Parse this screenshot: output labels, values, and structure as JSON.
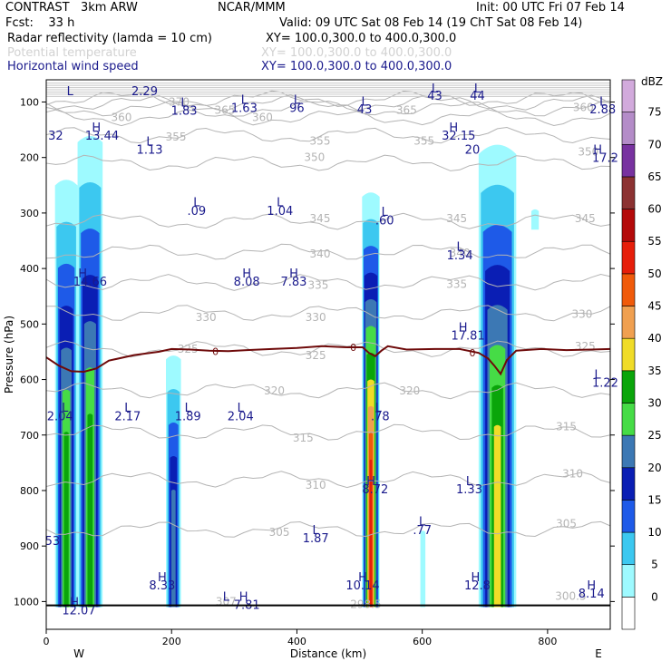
{
  "header": {
    "model": "CONTRAST   3km ARW",
    "org": "NCAR/MMM",
    "init": "Init: 00 UTC Fri 07 Feb 14",
    "fcst": "Fcst:    33 h",
    "valid": "Valid: 09 UTC Sat 08 Feb 14 (19 ChT Sat 08 Feb 14)",
    "field1": "Radar reflectivity (lamda = 10 cm)",
    "field1_xy": "XY= 100.0,300.0 to 400.0,300.0",
    "field2": "Potential temperature",
    "field2_xy": "XY= 100.0,300.0 to 400.0,300.0",
    "field3": "Horizontal wind speed",
    "field3_xy": "XY= 100.0,300.0 to 400.0,300.0"
  },
  "chart_data": {
    "type": "heatmap",
    "title": "Cross section: Radar reflectivity, Potential temperature, Horizontal wind speed",
    "xlabel": "Distance (km)",
    "ylabel": "Pressure (hPa)",
    "xlim": [
      0,
      900
    ],
    "ylim": [
      1050,
      60
    ],
    "x_ticks": [
      0,
      200,
      400,
      600,
      800
    ],
    "y_ticks": [
      100,
      200,
      300,
      400,
      500,
      600,
      700,
      800,
      900,
      1000
    ],
    "west_label": "W",
    "east_label": "E",
    "colorbar": {
      "unit": "dBZ",
      "levels": [
        0,
        5,
        10,
        15,
        20,
        25,
        30,
        35,
        40,
        45,
        50,
        55,
        60,
        65,
        70,
        75
      ],
      "colors": [
        "#ffffff",
        "#9efaff",
        "#3cc8f0",
        "#1e5ae8",
        "#0a1eb4",
        "#3c78b4",
        "#46dc46",
        "#0aa50a",
        "#f0dc28",
        "#f0a050",
        "#f05a0a",
        "#e61e0a",
        "#b40a0a",
        "#8c3232",
        "#7832a0",
        "#b48cc8",
        "#d2aadc"
      ]
    },
    "reflectivity_cells": [
      {
        "name": "cell-a",
        "x_center": 32,
        "x_half": 18,
        "top_hPa": 230,
        "bottom_hPa": 1010,
        "max_dBZ": 35
      },
      {
        "name": "cell-b",
        "x_center": 70,
        "x_half": 20,
        "top_hPa": 150,
        "bottom_hPa": 1010,
        "max_dBZ": 35
      },
      {
        "name": "cell-c",
        "x_center": 203,
        "x_half": 12,
        "top_hPa": 550,
        "bottom_hPa": 1010,
        "max_dBZ": 25
      },
      {
        "name": "cell-d",
        "x_center": 518,
        "x_half": 14,
        "top_hPa": 255,
        "bottom_hPa": 1010,
        "max_dBZ": 55
      },
      {
        "name": "cell-e",
        "x_center": 720,
        "x_half": 30,
        "top_hPa": 160,
        "bottom_hPa": 1010,
        "max_dBZ": 40
      },
      {
        "name": "cell-f",
        "x_center": 601,
        "x_half": 4,
        "top_hPa": 870,
        "bottom_hPa": 1010,
        "max_dBZ": 5
      },
      {
        "name": "cell-g",
        "x_center": 780,
        "x_half": 6,
        "top_hPa": 290,
        "bottom_hPa": 330,
        "max_dBZ": 5
      }
    ],
    "theta_contours": [
      {
        "value": 305,
        "p": 870
      },
      {
        "value": 310,
        "p": 780
      },
      {
        "value": 315,
        "p": 695
      },
      {
        "value": 320,
        "p": 620
      },
      {
        "value": 325,
        "p": 545
      },
      {
        "value": 330,
        "p": 480
      },
      {
        "value": 335,
        "p": 425
      },
      {
        "value": 340,
        "p": 370
      },
      {
        "value": 345,
        "p": 315
      },
      {
        "value": 350,
        "p": 210
      },
      {
        "value": 355,
        "p": 160
      },
      {
        "value": 360,
        "p": 128
      },
      {
        "value": 365,
        "p": 112
      },
      {
        "value": 370,
        "p": 102
      },
      {
        "value": 375,
        "p": 94
      }
    ],
    "theta_labels": [
      {
        "text": "305",
        "x": 372,
        "p": 875
      },
      {
        "text": "305",
        "x": 830,
        "p": 860
      },
      {
        "text": "310",
        "x": 430,
        "p": 790
      },
      {
        "text": "310",
        "x": 840,
        "p": 770
      },
      {
        "text": "315",
        "x": 410,
        "p": 705
      },
      {
        "text": "315",
        "x": 830,
        "p": 685
      },
      {
        "text": "320",
        "x": 364,
        "p": 620
      },
      {
        "text": "320",
        "x": 580,
        "p": 620
      },
      {
        "text": "325",
        "x": 226,
        "p": 545
      },
      {
        "text": "325",
        "x": 430,
        "p": 557
      },
      {
        "text": "325",
        "x": 860,
        "p": 540
      },
      {
        "text": "330",
        "x": 255,
        "p": 488
      },
      {
        "text": "330",
        "x": 430,
        "p": 488
      },
      {
        "text": "330",
        "x": 855,
        "p": 482
      },
      {
        "text": "335",
        "x": 434,
        "p": 430
      },
      {
        "text": "335",
        "x": 655,
        "p": 428
      },
      {
        "text": "340",
        "x": 437,
        "p": 374
      },
      {
        "text": "340",
        "x": 660,
        "p": 372
      },
      {
        "text": "345",
        "x": 437,
        "p": 310
      },
      {
        "text": "345",
        "x": 655,
        "p": 310
      },
      {
        "text": "345",
        "x": 860,
        "p": 310
      },
      {
        "text": "350",
        "x": 428,
        "p": 200
      },
      {
        "text": "350",
        "x": 865,
        "p": 190
      },
      {
        "text": "355",
        "x": 207,
        "p": 163
      },
      {
        "text": "355",
        "x": 437,
        "p": 170
      },
      {
        "text": "355",
        "x": 603,
        "p": 170
      },
      {
        "text": "360",
        "x": 120,
        "p": 128
      },
      {
        "text": "360",
        "x": 345,
        "p": 128
      },
      {
        "text": "360",
        "x": 857,
        "p": 110
      },
      {
        "text": "365",
        "x": 285,
        "p": 115
      },
      {
        "text": "365",
        "x": 575,
        "p": 115
      },
      {
        "text": "370",
        "x": 212,
        "p": 100
      },
      {
        "text": "307",
        "x": 287,
        "p": 1000
      },
      {
        "text": "298.5",
        "x": 510,
        "p": 1005
      },
      {
        "text": "300.5",
        "x": 837,
        "p": 990
      }
    ],
    "zero_line": {
      "label": "0",
      "points": [
        [
          0,
          560
        ],
        [
          20,
          575
        ],
        [
          40,
          585
        ],
        [
          60,
          586
        ],
        [
          80,
          580
        ],
        [
          100,
          566
        ],
        [
          140,
          556
        ],
        [
          180,
          550
        ],
        [
          200,
          545
        ],
        [
          230,
          546
        ],
        [
          260,
          548
        ],
        [
          290,
          549
        ],
        [
          320,
          547
        ],
        [
          360,
          545
        ],
        [
          400,
          543
        ],
        [
          440,
          540
        ],
        [
          480,
          542
        ],
        [
          505,
          542
        ],
        [
          515,
          552
        ],
        [
          525,
          558
        ],
        [
          535,
          548
        ],
        [
          545,
          540
        ],
        [
          575,
          546
        ],
        [
          620,
          545
        ],
        [
          660,
          545
        ],
        [
          690,
          552
        ],
        [
          705,
          562
        ],
        [
          715,
          575
        ],
        [
          725,
          590
        ],
        [
          735,
          565
        ],
        [
          750,
          548
        ],
        [
          790,
          545
        ],
        [
          830,
          547
        ],
        [
          870,
          546
        ],
        [
          900,
          545
        ]
      ],
      "label_x": [
        270,
        490,
        680
      ]
    },
    "wind_labels": [
      {
        "text": "L",
        "x": 38,
        "p": 80
      },
      {
        "text": "2.29",
        "x": 157,
        "p": 80
      },
      {
        "text": "L",
        "x": 220,
        "p": 100
      },
      {
        "text": "1.83",
        "x": 220,
        "p": 115
      },
      {
        "text": "L",
        "x": 316,
        "p": 95
      },
      {
        "text": "1.63",
        "x": 316,
        "p": 110
      },
      {
        "text": "L",
        "x": 400,
        "p": 95
      },
      {
        "text": "96",
        "x": 400,
        "p": 110
      },
      {
        "text": "L",
        "x": 508,
        "p": 98
      },
      {
        "text": "43",
        "x": 508,
        "p": 112
      },
      {
        "text": "L",
        "x": 620,
        "p": 75
      },
      {
        "text": "43",
        "x": 620,
        "p": 88
      },
      {
        "text": "L",
        "x": 688,
        "p": 75
      },
      {
        "text": "44",
        "x": 688,
        "p": 88
      },
      {
        "text": "L",
        "x": 888,
        "p": 98
      },
      {
        "text": "2.88",
        "x": 888,
        "p": 112
      },
      {
        "text": "H",
        "x": 80,
        "p": 145
      },
      {
        "text": "13.44",
        "x": 89,
        "p": 160
      },
      {
        "text": "32",
        "x": 15,
        "p": 160
      },
      {
        "text": "L",
        "x": 165,
        "p": 170
      },
      {
        "text": "1.13",
        "x": 165,
        "p": 185
      },
      {
        "text": "H",
        "x": 650,
        "p": 145
      },
      {
        "text": "32.15",
        "x": 658,
        "p": 160
      },
      {
        "text": "20",
        "x": 680,
        "p": 185
      },
      {
        "text": "H",
        "x": 880,
        "p": 185
      },
      {
        "text": "17.2",
        "x": 892,
        "p": 200
      },
      {
        "text": "L",
        "x": 240,
        "p": 280
      },
      {
        "text": ".09",
        "x": 240,
        "p": 295
      },
      {
        "text": "L",
        "x": 373,
        "p": 280
      },
      {
        "text": "1.04",
        "x": 373,
        "p": 295
      },
      {
        "text": "L",
        "x": 540,
        "p": 297
      },
      {
        "text": ".60",
        "x": 540,
        "p": 312
      },
      {
        "text": "L",
        "x": 660,
        "p": 360
      },
      {
        "text": "1.34",
        "x": 660,
        "p": 375
      },
      {
        "text": "H",
        "x": 58,
        "p": 408
      },
      {
        "text": "14.66",
        "x": 70,
        "p": 423
      },
      {
        "text": "H",
        "x": 320,
        "p": 408
      },
      {
        "text": "8.08",
        "x": 320,
        "p": 423
      },
      {
        "text": "H",
        "x": 395,
        "p": 408
      },
      {
        "text": "7.83",
        "x": 395,
        "p": 423
      },
      {
        "text": "H",
        "x": 665,
        "p": 505
      },
      {
        "text": "17.81",
        "x": 673,
        "p": 520
      },
      {
        "text": "L",
        "x": 880,
        "p": 590
      },
      {
        "text": "1.22",
        "x": 892,
        "p": 605
      },
      {
        "text": "L",
        "x": 30,
        "p": 650
      },
      {
        "text": "2.04",
        "x": 22,
        "p": 665
      },
      {
        "text": "L",
        "x": 130,
        "p": 650
      },
      {
        "text": "2.17",
        "x": 130,
        "p": 665
      },
      {
        "text": "L",
        "x": 226,
        "p": 650
      },
      {
        "text": "1.89",
        "x": 226,
        "p": 665
      },
      {
        "text": "L",
        "x": 310,
        "p": 650
      },
      {
        "text": "2.04",
        "x": 310,
        "p": 665
      },
      {
        "text": "L",
        "x": 530,
        "p": 650
      },
      {
        "text": ".78",
        "x": 533,
        "p": 665
      },
      {
        "text": "H",
        "x": 518,
        "p": 782
      },
      {
        "text": "8.72",
        "x": 525,
        "p": 797
      },
      {
        "text": "L",
        "x": 675,
        "p": 782
      },
      {
        "text": "1.33",
        "x": 675,
        "p": 797
      },
      {
        "text": "L",
        "x": 430,
        "p": 870
      },
      {
        "text": "1.87",
        "x": 430,
        "p": 885
      },
      {
        "text": "L",
        "x": 600,
        "p": 855
      },
      {
        "text": ".77",
        "x": 600,
        "p": 870
      },
      {
        "text": "53",
        "x": 10,
        "p": 890
      },
      {
        "text": "H",
        "x": 185,
        "p": 955
      },
      {
        "text": "8.33",
        "x": 185,
        "p": 970
      },
      {
        "text": "H",
        "x": 505,
        "p": 955
      },
      {
        "text": "10.14",
        "x": 505,
        "p": 970
      },
      {
        "text": "H",
        "x": 685,
        "p": 955
      },
      {
        "text": "12.8",
        "x": 688,
        "p": 970
      },
      {
        "text": "H",
        "x": 870,
        "p": 970
      },
      {
        "text": "8.14",
        "x": 870,
        "p": 985
      },
      {
        "text": "L",
        "x": 287,
        "p": 990
      },
      {
        "text": "H",
        "x": 315,
        "p": 990
      },
      {
        "text": "7.81",
        "x": 320,
        "p": 1005
      },
      {
        "text": "H",
        "x": 45,
        "p": 1000
      },
      {
        "text": "12.07",
        "x": 52,
        "p": 1015
      }
    ]
  }
}
